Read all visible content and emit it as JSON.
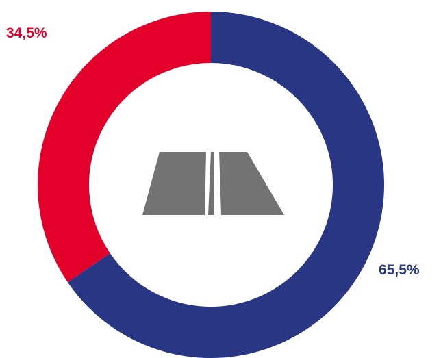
{
  "chart_data": {
    "type": "pie",
    "variant": "donut",
    "title": "",
    "slices": [
      {
        "label": "65,5%",
        "value": 65.5,
        "color": "#293683"
      },
      {
        "label": "34,5%",
        "value": 34.5,
        "color": "#e2002a"
      }
    ],
    "start": "top",
    "direction": "clockwise",
    "legend": "none",
    "center_icon": "road-icon",
    "center_icon_color": "#737373"
  }
}
